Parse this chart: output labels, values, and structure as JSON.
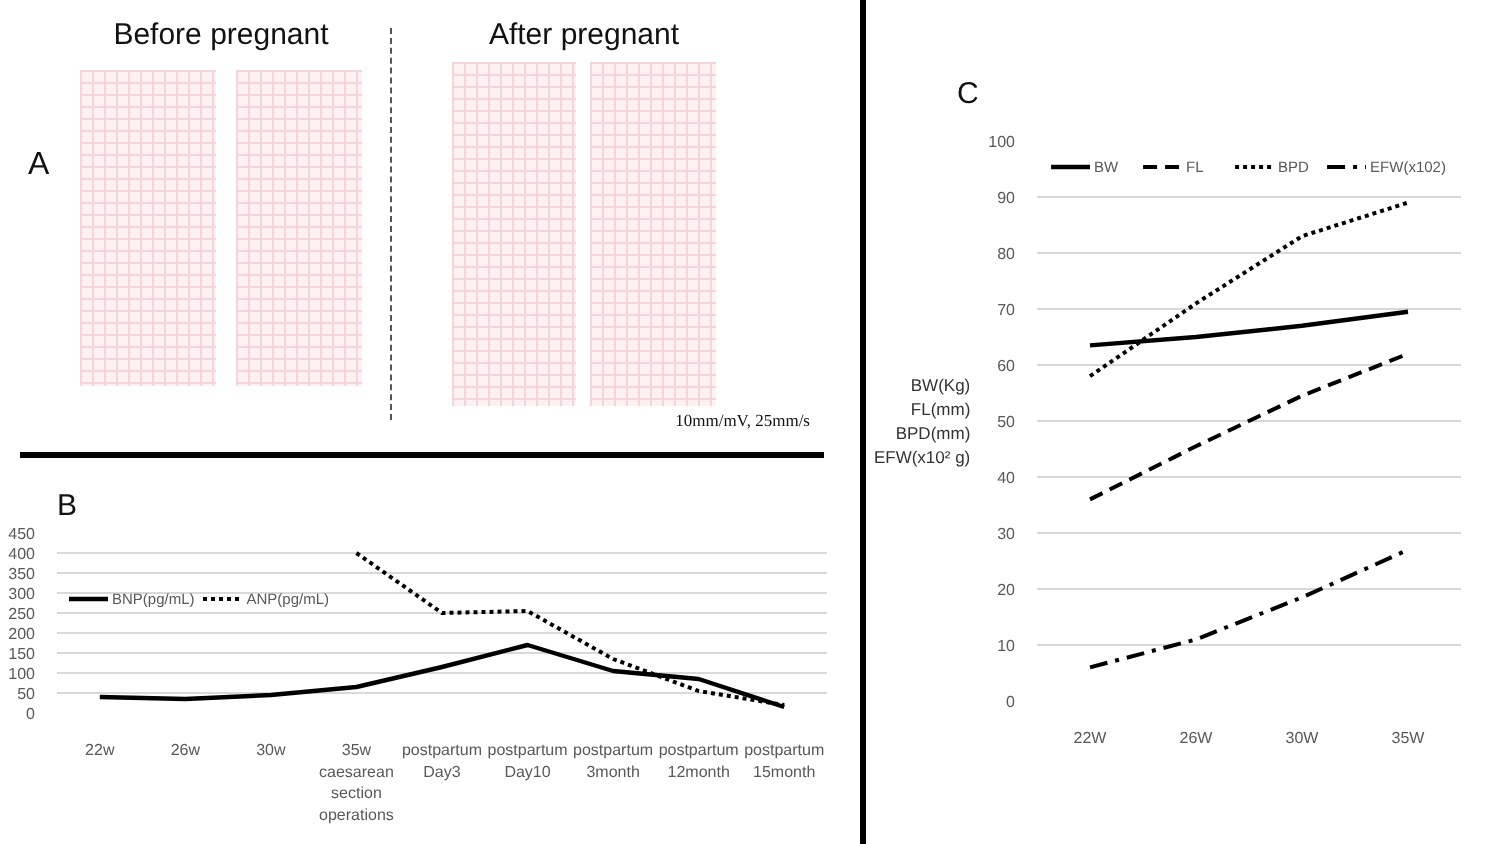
{
  "chart_data": [
    {
      "type": "other",
      "title": "A",
      "annotations": [
        "Before pregnant",
        "After pregnant",
        "10mm/mV, 25mm/s"
      ]
    },
    {
      "type": "line",
      "title": "B",
      "categories": [
        "22w",
        "26w",
        "30w",
        "35w\ncaesarean\nsection\noperations",
        "postpartum\nDay3",
        "postpartum\nDay10",
        "postpartum\n3month",
        "postpartum\n12month",
        "postpartum\n15month"
      ],
      "series": [
        {
          "name": "BNP(pg/mL)",
          "color": "#000000",
          "line_style": "solid",
          "values": [
            40,
            35,
            45,
            65,
            115,
            170,
            105,
            85,
            15
          ]
        },
        {
          "name": "ANP(pg/mL)",
          "color": "#000000",
          "line_style": "dotted",
          "values": [
            null,
            null,
            null,
            400,
            250,
            255,
            135,
            55,
            20
          ]
        }
      ],
      "ylim": [
        0,
        450
      ],
      "yticks": [
        0,
        50,
        100,
        150,
        200,
        250,
        300,
        350,
        400,
        450
      ],
      "grid": "y",
      "legend": "top left"
    },
    {
      "type": "line",
      "title": "C",
      "ylabel": "BW(Kg)\nFL(mm)\nBPD(mm)\nEFW(x10² g)",
      "categories": [
        "22W",
        "26W",
        "30W",
        "35W"
      ],
      "series": [
        {
          "name": "BW",
          "color": "#000000",
          "line_style": "solid",
          "values": [
            63.5,
            65,
            67,
            69.5
          ]
        },
        {
          "name": "FL",
          "color": "#000000",
          "line_style": "dashed",
          "values": [
            36,
            45.5,
            54.5,
            62
          ]
        },
        {
          "name": "BPD",
          "color": "#000000",
          "line_style": "dotted",
          "values": [
            58,
            71,
            83,
            89
          ]
        },
        {
          "name": "EFW(x102)",
          "color": "#000000",
          "line_style": "dashdot",
          "values": [
            6,
            11,
            18.5,
            27
          ]
        }
      ],
      "ylim": [
        0,
        100
      ],
      "yticks": [
        0,
        10,
        20,
        30,
        40,
        50,
        60,
        70,
        80,
        90,
        100
      ],
      "grid": "y",
      "legend": "top"
    }
  ]
}
